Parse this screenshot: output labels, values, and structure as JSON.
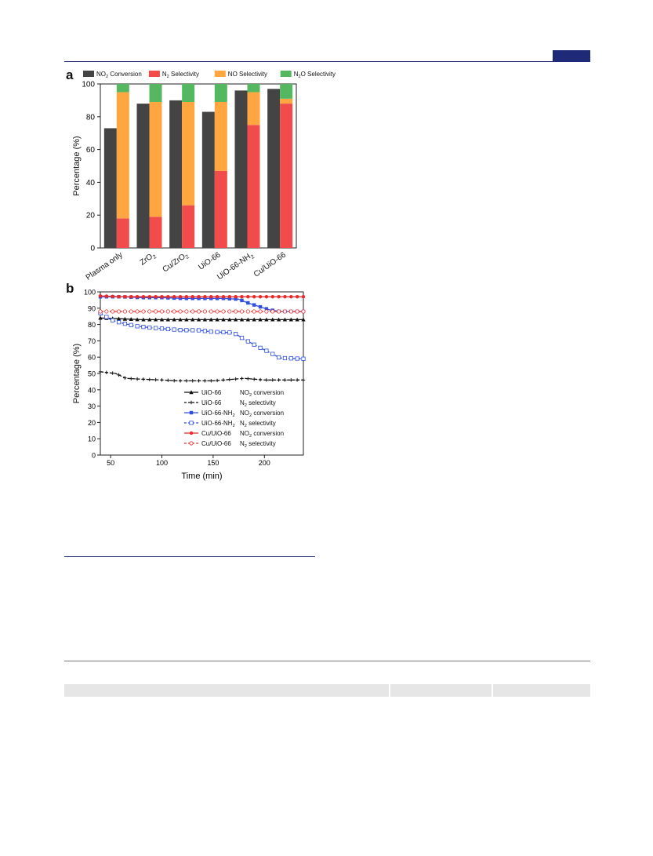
{
  "panel_a_label": "a",
  "panel_b_label": "b",
  "chart_data": [
    {
      "type": "bar",
      "panel": "a",
      "categories": [
        "Plasma only",
        "ZrO2",
        "Cu/ZrO2",
        "UiO-66",
        "UiO-66-NH2",
        "Cu/UiO-66"
      ],
      "ylabel": "Percentage (%)",
      "xlabel": "",
      "ylim": [
        0,
        100
      ],
      "yticks": [
        0,
        20,
        40,
        60,
        80,
        100
      ],
      "legend_position": "top",
      "series": [
        {
          "name": "NO2 Conversion",
          "color": "#444444",
          "values": [
            73,
            88,
            90,
            83,
            96,
            97
          ]
        },
        {
          "name": "N2 Selectivity",
          "color": "#f24b4b",
          "values": [
            18,
            19,
            26,
            47,
            75,
            88
          ]
        },
        {
          "name": "NO Selectivity",
          "color": "#ffa640",
          "values": [
            77,
            70,
            63,
            42,
            20,
            3
          ]
        },
        {
          "name": "N2O Selectivity",
          "color": "#55b860",
          "values": [
            5,
            11,
            11,
            11,
            5,
            9
          ]
        }
      ],
      "stacked_series": [
        "N2 Selectivity",
        "NO Selectivity",
        "N2O Selectivity"
      ]
    },
    {
      "type": "line",
      "panel": "b",
      "xlabel": "Time (min)",
      "ylabel": "Percentage (%)",
      "xlim": [
        40,
        238
      ],
      "ylim": [
        0,
        100
      ],
      "xticks": [
        50,
        100,
        150,
        200
      ],
      "yticks": [
        0,
        10,
        20,
        30,
        40,
        50,
        60,
        70,
        80,
        90,
        100
      ],
      "legend_position": "bottom-right",
      "series": [
        {
          "name": "UiO-66",
          "metric": "NO2 conversion",
          "color": "#111111",
          "dashed": false,
          "marker": "triangle",
          "x": [
            40,
            60,
            80,
            100,
            120,
            140,
            160,
            180,
            200,
            220,
            238
          ],
          "y": [
            84,
            83.5,
            83,
            83,
            83,
            83,
            83,
            83,
            83,
            83,
            83
          ]
        },
        {
          "name": "UiO-66",
          "metric": "N2 selectivity",
          "color": "#111111",
          "dashed": true,
          "marker": "star",
          "x": [
            40,
            55,
            65,
            80,
            100,
            115,
            130,
            150,
            170,
            180,
            200,
            220,
            238
          ],
          "y": [
            51,
            50,
            47,
            46.5,
            46,
            45.5,
            45.5,
            45.5,
            46.5,
            47,
            46,
            46,
            46
          ]
        },
        {
          "name": "UiO-66-NH2",
          "metric": "NO2 conversion",
          "color": "#2f4fe0",
          "dashed": false,
          "marker": "square",
          "x": [
            40,
            60,
            80,
            100,
            120,
            140,
            160,
            175,
            185,
            195,
            205,
            215,
            238
          ],
          "y": [
            97,
            97,
            96.5,
            96.5,
            96,
            96,
            96,
            95.5,
            93,
            91,
            89,
            88,
            88
          ]
        },
        {
          "name": "UiO-66-NH2",
          "metric": "N2 selectivity",
          "color": "#2f4fe0",
          "dashed": true,
          "marker": "square-open",
          "x": [
            40,
            50,
            60,
            75,
            90,
            110,
            120,
            135,
            150,
            170,
            180,
            195,
            205,
            215,
            238
          ],
          "y": [
            87,
            83,
            81,
            79,
            78,
            77,
            76.5,
            76.5,
            75.5,
            75,
            71,
            66,
            63,
            59.5,
            59
          ]
        },
        {
          "name": "Cu/UiO-66",
          "metric": "NO2 conversion",
          "color": "#e82a2a",
          "dashed": false,
          "marker": "circle",
          "x": [
            40,
            60,
            80,
            100,
            120,
            140,
            160,
            180,
            200,
            220,
            238
          ],
          "y": [
            97.5,
            97,
            97,
            97,
            97,
            97,
            97,
            97,
            97,
            97,
            97
          ]
        },
        {
          "name": "Cu/UiO-66",
          "metric": "N2 selectivity",
          "color": "#e82a2a",
          "dashed": true,
          "marker": "circle-open",
          "x": [
            40,
            60,
            80,
            100,
            120,
            140,
            160,
            180,
            200,
            220,
            238
          ],
          "y": [
            88,
            88,
            88,
            88,
            88,
            88,
            88,
            88,
            88,
            88,
            88
          ]
        }
      ]
    }
  ]
}
